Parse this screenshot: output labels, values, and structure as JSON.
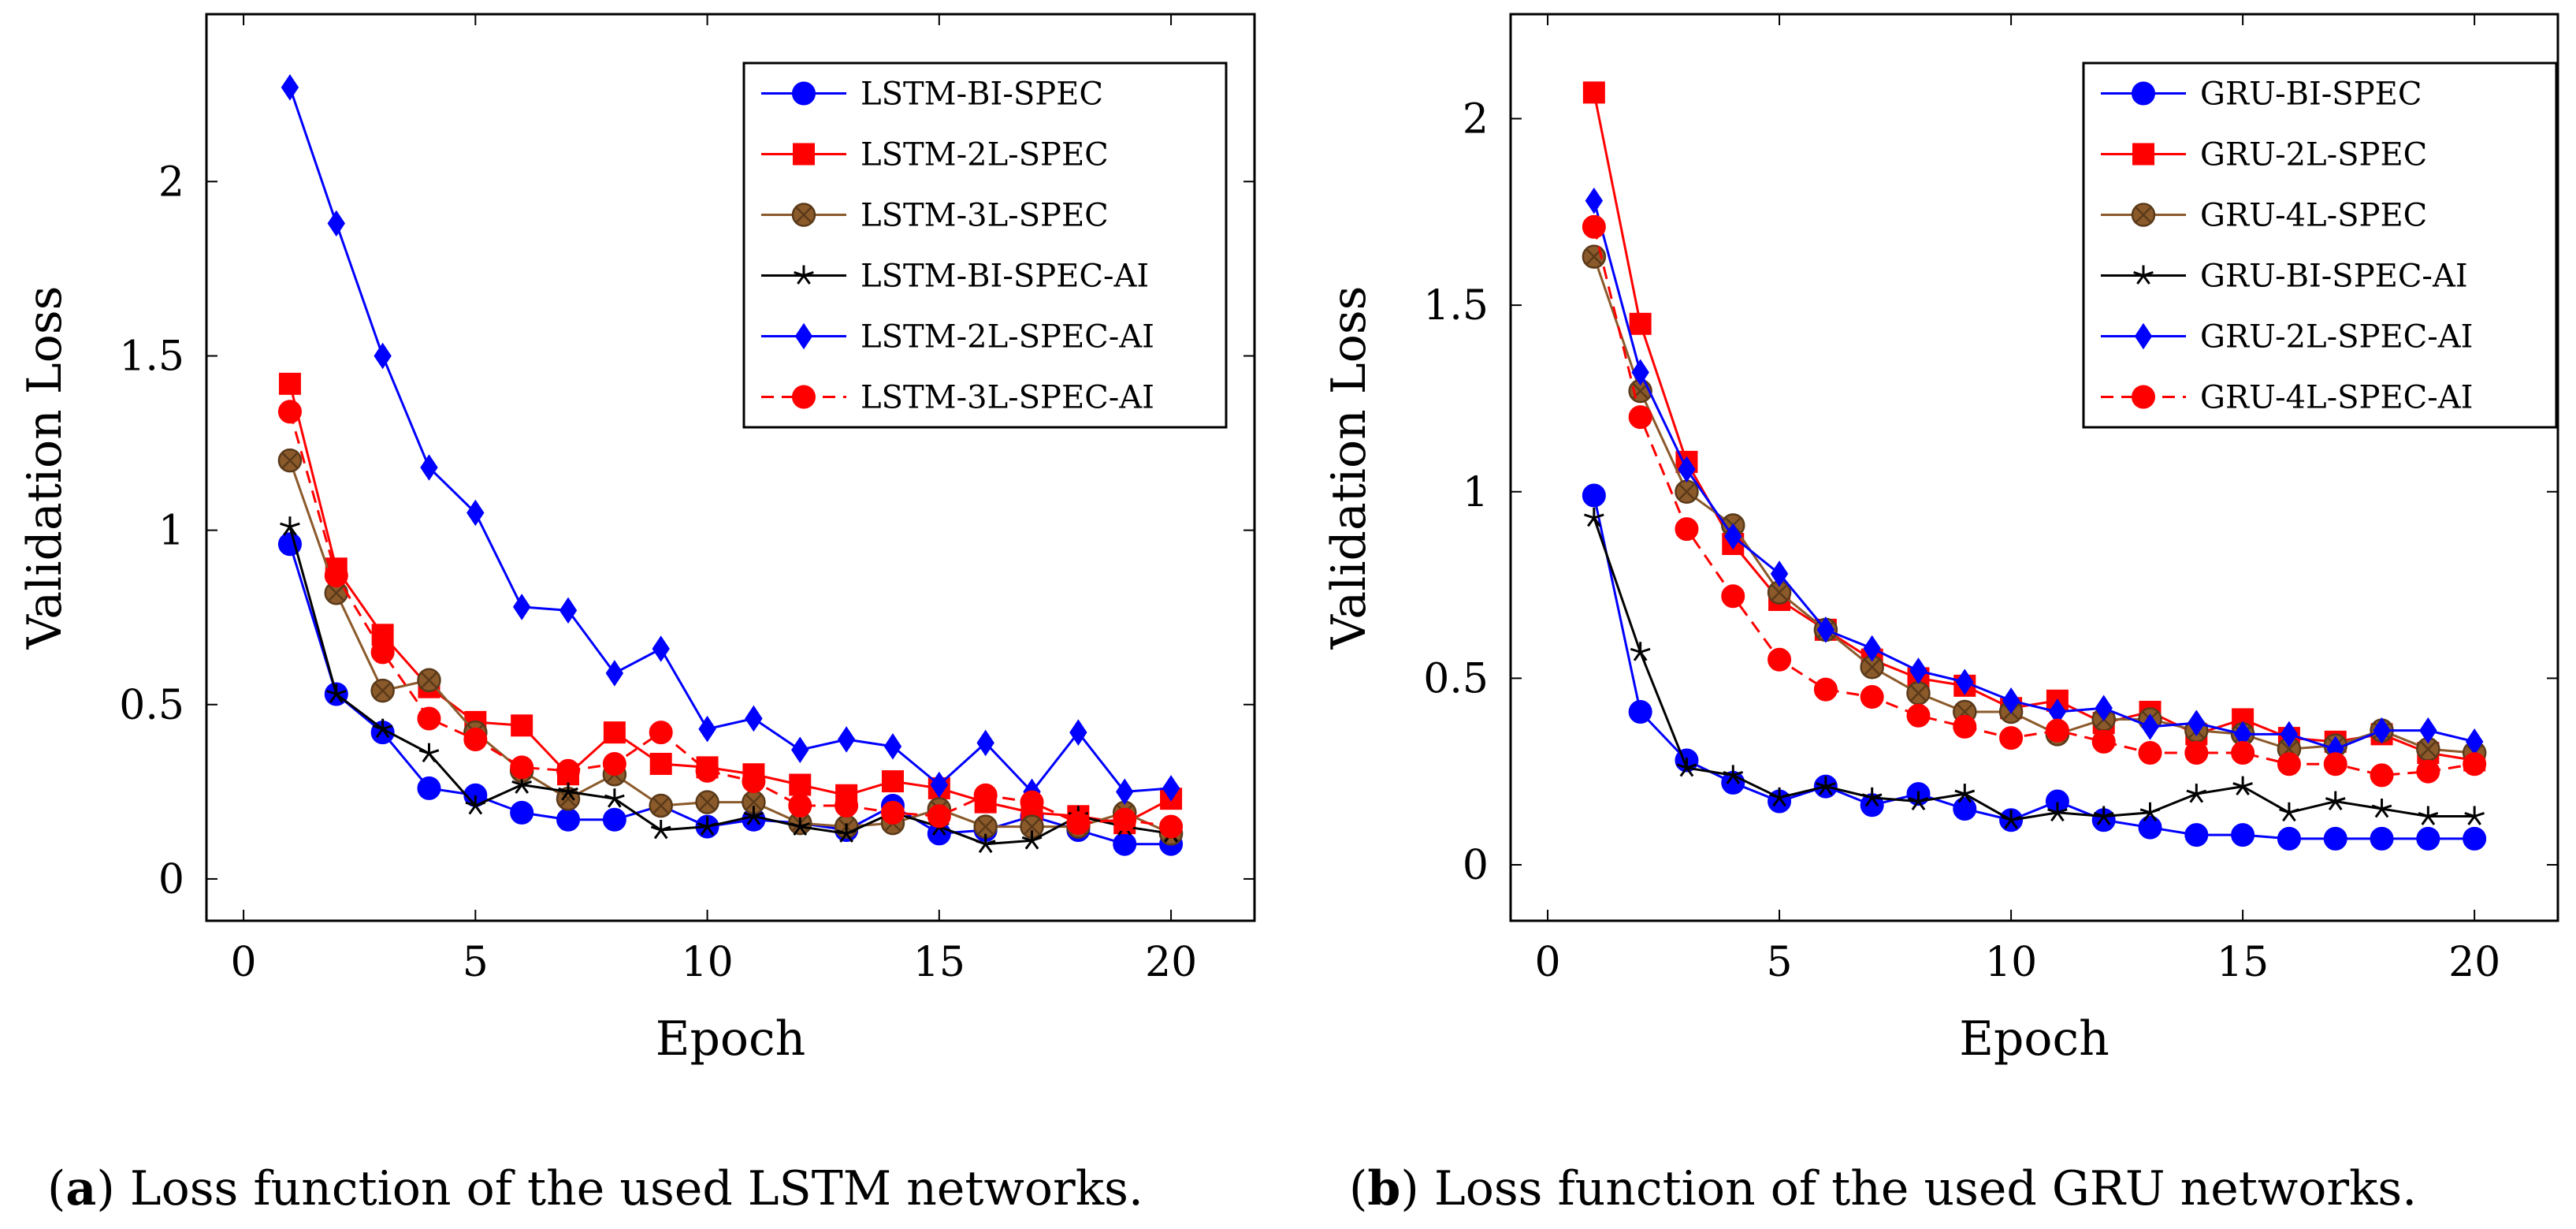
{
  "chart_data": [
    {
      "type": "line",
      "panel": "a",
      "title": "",
      "xlabel": "Epoch",
      "ylabel": "Validation Loss",
      "xlim": [
        -0.8,
        21.8
      ],
      "ylim": [
        -0.12,
        2.48
      ],
      "xticks": [
        0,
        5,
        10,
        15,
        20
      ],
      "xtick_labels": [
        "0",
        "5",
        "10",
        "15",
        "20"
      ],
      "yticks": [
        0,
        0.5,
        1,
        1.5,
        2
      ],
      "ytick_labels": [
        "0",
        "0.5",
        "1",
        "1.5",
        "2"
      ],
      "grid": false,
      "legend_position": "top-right",
      "caption_label": "a",
      "caption_text": ") Loss function of the used LSTM networks.",
      "x": [
        1,
        2,
        3,
        4,
        5,
        6,
        7,
        8,
        9,
        10,
        11,
        12,
        13,
        14,
        15,
        16,
        17,
        18,
        19,
        20
      ],
      "series": [
        {
          "name": "LSTM-BI-SPEC",
          "color": "#0000ff",
          "marker": "circle",
          "dash": "solid",
          "values": [
            0.96,
            0.53,
            0.42,
            0.26,
            0.24,
            0.19,
            0.17,
            0.17,
            0.21,
            0.15,
            0.17,
            0.16,
            0.14,
            0.21,
            0.13,
            0.14,
            0.18,
            0.14,
            0.1,
            0.1
          ]
        },
        {
          "name": "LSTM-2L-SPEC",
          "color": "#ff0000",
          "marker": "square",
          "dash": "solid",
          "values": [
            1.42,
            0.89,
            0.7,
            0.55,
            0.45,
            0.44,
            0.3,
            0.42,
            0.33,
            0.32,
            0.3,
            0.27,
            0.24,
            0.28,
            0.26,
            0.22,
            0.19,
            0.18,
            0.16,
            0.23
          ]
        },
        {
          "name": "LSTM-3L-SPEC",
          "color": "#8b5a2b",
          "marker": "otimes",
          "dash": "solid",
          "values": [
            1.2,
            0.82,
            0.54,
            0.57,
            0.42,
            0.31,
            0.23,
            0.3,
            0.21,
            0.22,
            0.22,
            0.16,
            0.15,
            0.16,
            0.2,
            0.15,
            0.15,
            0.15,
            0.19,
            0.13
          ]
        },
        {
          "name": "LSTM-BI-SPEC-AI",
          "color": "#000000",
          "marker": "star",
          "dash": "solid",
          "values": [
            1.01,
            0.53,
            0.43,
            0.36,
            0.21,
            0.27,
            0.25,
            0.23,
            0.14,
            0.15,
            0.18,
            0.15,
            0.13,
            0.19,
            0.15,
            0.1,
            0.11,
            0.18,
            0.15,
            0.13
          ]
        },
        {
          "name": "LSTM-2L-SPEC-AI",
          "color": "#0000ff",
          "marker": "diamond",
          "dash": "solid",
          "values": [
            2.27,
            1.88,
            1.5,
            1.18,
            1.05,
            0.78,
            0.77,
            0.59,
            0.66,
            0.43,
            0.46,
            0.37,
            0.4,
            0.38,
            0.27,
            0.39,
            0.25,
            0.42,
            0.25,
            0.26
          ]
        },
        {
          "name": "LSTM-3L-SPEC-AI",
          "color": "#ff0000",
          "marker": "circle",
          "dash": "dashed",
          "values": [
            1.34,
            0.87,
            0.65,
            0.46,
            0.4,
            0.32,
            0.31,
            0.33,
            0.42,
            0.31,
            0.28,
            0.21,
            0.21,
            0.19,
            0.18,
            0.24,
            0.22,
            0.16,
            0.17,
            0.15
          ]
        }
      ]
    },
    {
      "type": "line",
      "panel": "b",
      "title": "",
      "xlabel": "Epoch",
      "ylabel": "Validation Loss",
      "xlim": [
        -0.8,
        21.8
      ],
      "ylim": [
        -0.15,
        2.28
      ],
      "xticks": [
        0,
        5,
        10,
        15,
        20
      ],
      "xtick_labels": [
        "0",
        "5",
        "10",
        "15",
        "20"
      ],
      "yticks": [
        0,
        0.5,
        1,
        1.5,
        2
      ],
      "ytick_labels": [
        "0",
        "0.5",
        "1",
        "1.5",
        "2"
      ],
      "grid": false,
      "legend_position": "top-right",
      "caption_label": "b",
      "caption_text": ") Loss function of the used GRU networks.",
      "x": [
        1,
        2,
        3,
        4,
        5,
        6,
        7,
        8,
        9,
        10,
        11,
        12,
        13,
        14,
        15,
        16,
        17,
        18,
        19,
        20
      ],
      "series": [
        {
          "name": "GRU-BI-SPEC",
          "color": "#0000ff",
          "marker": "circle",
          "dash": "solid",
          "values": [
            0.99,
            0.41,
            0.28,
            0.22,
            0.17,
            0.21,
            0.16,
            0.19,
            0.15,
            0.12,
            0.17,
            0.12,
            0.1,
            0.08,
            0.08,
            0.07,
            0.07,
            0.07,
            0.07,
            0.07
          ]
        },
        {
          "name": "GRU-2L-SPEC",
          "color": "#ff0000",
          "marker": "square",
          "dash": "solid",
          "values": [
            2.07,
            1.45,
            1.08,
            0.86,
            0.71,
            0.63,
            0.55,
            0.5,
            0.48,
            0.42,
            0.44,
            0.38,
            0.41,
            0.35,
            0.39,
            0.34,
            0.33,
            0.35,
            0.3,
            0.28
          ]
        },
        {
          "name": "GRU-4L-SPEC",
          "color": "#8b5a2b",
          "marker": "otimes",
          "dash": "solid",
          "values": [
            1.63,
            1.27,
            1.0,
            0.91,
            0.73,
            0.63,
            0.53,
            0.46,
            0.41,
            0.41,
            0.35,
            0.39,
            0.39,
            0.36,
            0.35,
            0.31,
            0.32,
            0.36,
            0.31,
            0.3
          ]
        },
        {
          "name": "GRU-BI-SPEC-AI",
          "color": "#000000",
          "marker": "star",
          "dash": "solid",
          "values": [
            0.93,
            0.57,
            0.26,
            0.24,
            0.18,
            0.21,
            0.18,
            0.17,
            0.19,
            0.12,
            0.14,
            0.13,
            0.14,
            0.19,
            0.21,
            0.14,
            0.17,
            0.15,
            0.13,
            0.13
          ]
        },
        {
          "name": "GRU-2L-SPEC-AI",
          "color": "#0000ff",
          "marker": "diamond",
          "dash": "solid",
          "values": [
            1.78,
            1.32,
            1.06,
            0.88,
            0.78,
            0.63,
            0.58,
            0.52,
            0.49,
            0.44,
            0.41,
            0.42,
            0.37,
            0.38,
            0.35,
            0.35,
            0.31,
            0.36,
            0.36,
            0.33
          ]
        },
        {
          "name": "GRU-4L-SPEC-AI",
          "color": "#ff0000",
          "marker": "circle",
          "dash": "dashed",
          "values": [
            1.71,
            1.2,
            0.9,
            0.72,
            0.55,
            0.47,
            0.45,
            0.4,
            0.37,
            0.34,
            0.36,
            0.33,
            0.3,
            0.3,
            0.3,
            0.27,
            0.27,
            0.24,
            0.25,
            0.27
          ]
        }
      ]
    }
  ]
}
